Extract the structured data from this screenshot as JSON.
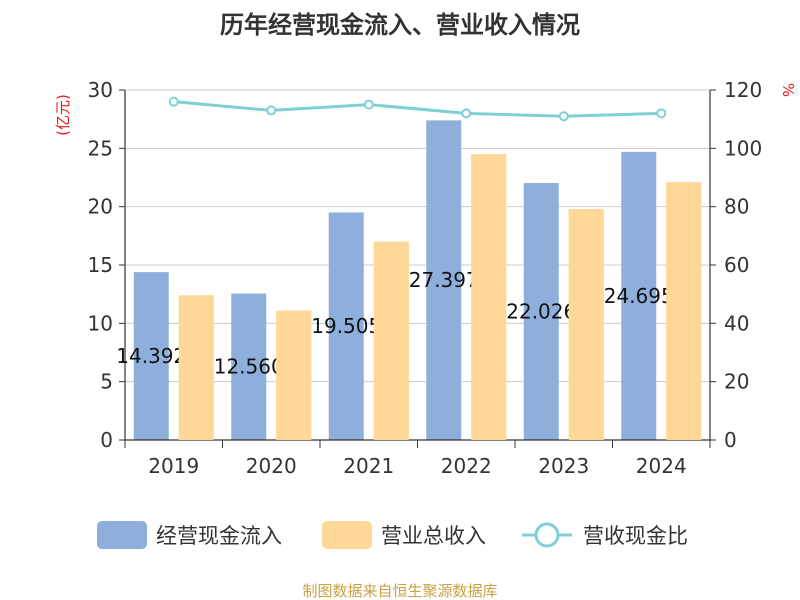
{
  "chart_data": {
    "type": "bar",
    "title": "历年经营现金流入、营业收入情况",
    "categories": [
      "2019",
      "2020",
      "2021",
      "2022",
      "2023",
      "2024"
    ],
    "y_left": {
      "unit_label": "(亿元)",
      "range": [
        0,
        30
      ],
      "ticks": [
        0,
        5,
        10,
        15,
        20,
        25,
        30
      ]
    },
    "y_right": {
      "unit_label": "%",
      "range": [
        0,
        120
      ],
      "ticks": [
        0,
        20,
        40,
        60,
        80,
        100,
        120
      ]
    },
    "series": [
      {
        "name": "经营现金流入",
        "type": "bar",
        "axis": "left",
        "color": "#8eaedb",
        "values": [
          14.39,
          12.56,
          19.505,
          27.397,
          22.026,
          24.695
        ],
        "labels": [
          "14.392",
          "12.560",
          "19.505",
          "27.397",
          "22.026",
          "24.695"
        ]
      },
      {
        "name": "营业总收入",
        "type": "bar",
        "axis": "left",
        "color": "#ffd898",
        "values": [
          12.4,
          11.1,
          17.0,
          24.5,
          19.8,
          22.1
        ]
      },
      {
        "name": "营收现金比",
        "type": "line",
        "axis": "right",
        "color": "#7fd0d4",
        "values": [
          116,
          113,
          115,
          112,
          111,
          112
        ]
      }
    ],
    "grid": true,
    "legend_position": "bottom"
  },
  "source_note": "制图数据来自恒生聚源数据库"
}
